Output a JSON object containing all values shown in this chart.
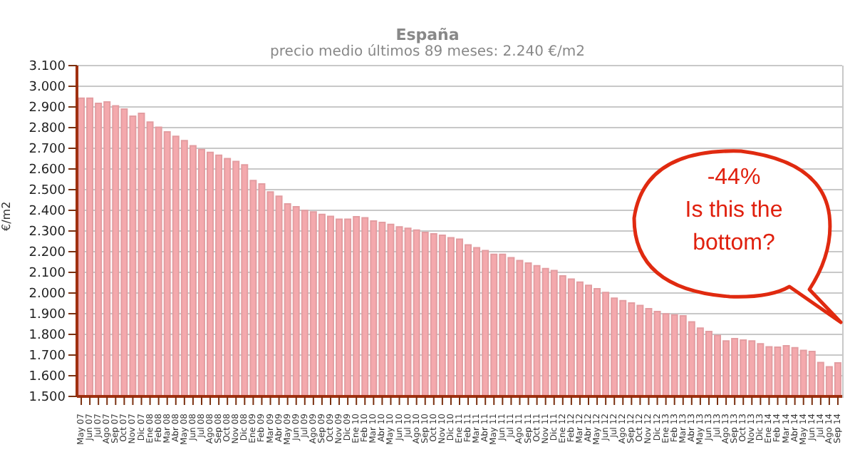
{
  "chart_data": {
    "type": "bar",
    "title": "España",
    "subtitle": "precio medio últimos 89 meses: 2.240 €/m2",
    "ylabel": "€/m2",
    "categories": [
      "May 07",
      "Jun 07",
      "Jul 07",
      "Ago 07",
      "Sep 07",
      "Oct 07",
      "Nov 07",
      "Dic 07",
      "Ene 08",
      "Feb 08",
      "Mar 08",
      "Abr 08",
      "May 08",
      "Jun 08",
      "Jul 08",
      "Ago 08",
      "Sep 08",
      "Oct 08",
      "Nov 08",
      "Dic 08",
      "Ene 09",
      "Feb 09",
      "Mar 09",
      "Abr 09",
      "May 09",
      "Jun 09",
      "Jul 09",
      "Ago 09",
      "Sep 09",
      "Oct 09",
      "Nov 09",
      "Dic 09",
      "Ene 10",
      "Feb 10",
      "Mar 10",
      "Abr 10",
      "May 10",
      "Jun 10",
      "Jul 10",
      "Ago 10",
      "Sep 10",
      "Oct 10",
      "Nov 10",
      "Dic 10",
      "Ene 11",
      "Feb 11",
      "Mar 11",
      "Abr 11",
      "May 11",
      "Jun 11",
      "Jul 11",
      "Ago 11",
      "Sep 11",
      "Oct 11",
      "Nov 11",
      "Dic 11",
      "Ene 12",
      "Feb 12",
      "Mar 12",
      "Abr 12",
      "May 12",
      "Jun 12",
      "Jul 12",
      "Ago 12",
      "Sep 12",
      "Oct 12",
      "Nov 12",
      "Dic 12",
      "Ene 13",
      "Feb 13",
      "Mar 13",
      "Abr 13",
      "May 13",
      "Jun 13",
      "Jul 13",
      "Ago 13",
      "Sep 13",
      "Oct 13",
      "Nov 13",
      "Dic 13",
      "Ene 14",
      "Feb 14",
      "Mar 14",
      "Abr 14",
      "May 14",
      "Jun 14",
      "Jul 14",
      "Ago 14",
      "Sep 14"
    ],
    "values": [
      2942,
      2942,
      2917,
      2924,
      2905,
      2890,
      2855,
      2869,
      2827,
      2802,
      2779,
      2758,
      2737,
      2712,
      2694,
      2680,
      2666,
      2650,
      2636,
      2620,
      2544,
      2528,
      2489,
      2468,
      2431,
      2417,
      2399,
      2392,
      2380,
      2371,
      2357,
      2357,
      2369,
      2364,
      2348,
      2341,
      2332,
      2320,
      2313,
      2304,
      2293,
      2286,
      2279,
      2267,
      2260,
      2233,
      2219,
      2205,
      2187,
      2187,
      2171,
      2157,
      2145,
      2132,
      2118,
      2109,
      2083,
      2067,
      2053,
      2037,
      2021,
      2003,
      1975,
      1963,
      1952,
      1940,
      1924,
      1910,
      1899,
      1894,
      1890,
      1860,
      1830,
      1814,
      1795,
      1768,
      1779,
      1772,
      1768,
      1754,
      1740,
      1738,
      1745,
      1735,
      1722,
      1717,
      1664,
      1643,
      1662
    ],
    "color": "#f4a9ad",
    "ylim": [
      1500,
      3100
    ],
    "yticks": [
      {
        "value": 1500,
        "label": "1.500"
      },
      {
        "value": 1600,
        "label": "1.600"
      },
      {
        "value": 1700,
        "label": "1.700"
      },
      {
        "value": 1800,
        "label": "1.800"
      },
      {
        "value": 1900,
        "label": "1.900"
      },
      {
        "value": 2000,
        "label": "2.000"
      },
      {
        "value": 2100,
        "label": "2.100"
      },
      {
        "value": 2200,
        "label": "2.200"
      },
      {
        "value": 2300,
        "label": "2.300"
      },
      {
        "value": 2400,
        "label": "2.400"
      },
      {
        "value": 2500,
        "label": "2.500"
      },
      {
        "value": 2600,
        "label": "2.600"
      },
      {
        "value": 2700,
        "label": "2.700"
      },
      {
        "value": 2800,
        "label": "2.800"
      },
      {
        "value": 2900,
        "label": "2.900"
      },
      {
        "value": 3000,
        "label": "3.000"
      },
      {
        "value": 3100,
        "label": "3.100"
      }
    ],
    "grid": "y",
    "annotations": [
      "-44%\nIs this the\nbottom?"
    ]
  }
}
